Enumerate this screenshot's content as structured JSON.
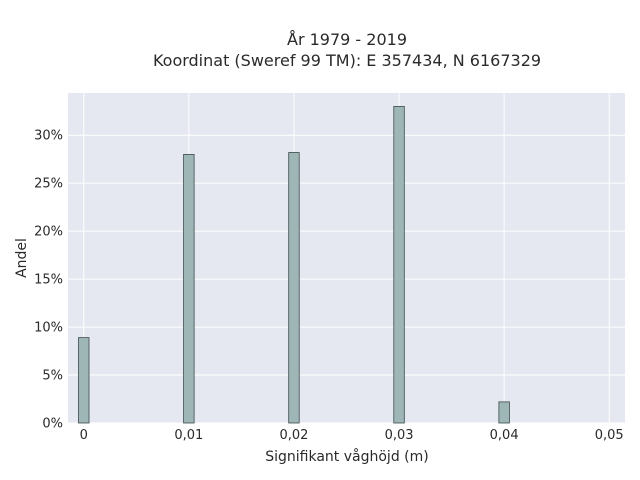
{
  "chart_data": {
    "type": "bar",
    "title": "År 1979 - 2019",
    "subtitle": "Koordinat (Sweref 99 TM): E 357434, N 6167329",
    "xlabel": "Signifikant våghöjd (m)",
    "ylabel": "Andel",
    "xlim": [
      -0.0015,
      0.0515
    ],
    "ylim": [
      0,
      34.4
    ],
    "x_ticks": [
      0,
      0.01,
      0.02,
      0.03,
      0.04,
      0.05
    ],
    "x_tick_labels": [
      "0",
      "0,01",
      "0,02",
      "0,03",
      "0,04",
      "0,05"
    ],
    "y_ticks": [
      0,
      5,
      10,
      15,
      20,
      25,
      30
    ],
    "y_tick_labels": [
      "0%",
      "5%",
      "10%",
      "15%",
      "20%",
      "25%",
      "30%"
    ],
    "bar_width": 0.001,
    "x": [
      0,
      0.01,
      0.02,
      0.03,
      0.04
    ],
    "values": [
      8.9,
      28.0,
      28.2,
      33.0,
      2.2
    ],
    "grid": true,
    "colors": {
      "plot_background": "#e5e8f0",
      "grid": "#ffffff",
      "bar_fill": "#9fb6b7",
      "bar_stroke": "#3a4a4a"
    }
  }
}
